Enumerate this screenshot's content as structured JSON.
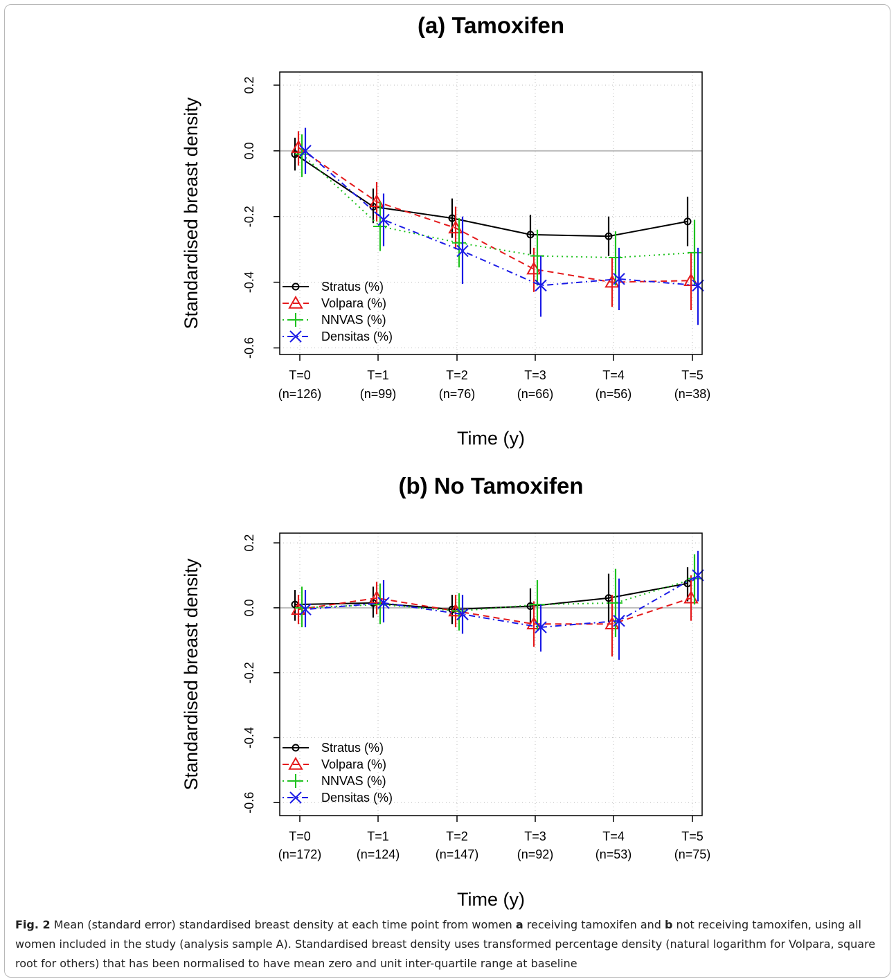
{
  "figure_label": "Fig. 2",
  "caption_parts": {
    "t1": " Mean (standard error) standardised breast density at each time point from women ",
    "a": "a",
    "t2": " receiving tamoxifen and ",
    "b": "b",
    "t3": " not receiving tamoxifen, using all women included in the study (analysis sample A). Standardised breast density uses transformed percentage density (natural logarithm for Volpara, square root for others) that has been normalised to have mean zero and unit inter-quartile range at baseline"
  },
  "colors": {
    "Stratus (%)": "#000000",
    "Volpara (%)": "#e41a1c",
    "NNVAS (%)": "#1fc21f",
    "Densitas (%)": "#1a1ae6",
    "refline": "#bdbdbd",
    "grid": "#bbbbbb"
  },
  "chart_data": [
    {
      "type": "line",
      "title": "(a) Tamoxifen",
      "xlabel": "Time (y)",
      "ylabel": "Standardised breast density",
      "ylim": [
        -0.62,
        0.24
      ],
      "yticks": [
        "0.2",
        "0.0",
        "-0.2",
        "-0.4",
        "-0.6"
      ],
      "categories": [
        "T=0",
        "T=1",
        "T=2",
        "T=3",
        "T=4",
        "T=5"
      ],
      "n_labels": [
        "(n=126)",
        "(n=99)",
        "(n=76)",
        "(n=66)",
        "(n=56)",
        "(n=38)"
      ],
      "grid": true,
      "reference_line": 0,
      "legend": {
        "position": "bottom-left",
        "entries": [
          "Stratus (%)",
          "Volpara (%)",
          "NNVAS (%)",
          "Densitas (%)"
        ]
      },
      "series": [
        {
          "name": "Stratus (%)",
          "marker": "circle",
          "dash": "solid",
          "values": [
            -0.01,
            -0.17,
            -0.205,
            -0.255,
            -0.26,
            -0.215
          ],
          "lower": [
            -0.06,
            -0.22,
            -0.265,
            -0.315,
            -0.32,
            -0.29
          ],
          "upper": [
            0.04,
            -0.115,
            -0.145,
            -0.195,
            -0.2,
            -0.14
          ]
        },
        {
          "name": "Volpara (%)",
          "marker": "triangle",
          "dash": "dashed",
          "values": [
            0.01,
            -0.155,
            -0.235,
            -0.36,
            -0.4,
            -0.395
          ],
          "lower": [
            -0.045,
            -0.215,
            -0.3,
            -0.43,
            -0.475,
            -0.485
          ],
          "upper": [
            0.06,
            -0.095,
            -0.17,
            -0.295,
            -0.325,
            -0.31
          ]
        },
        {
          "name": "NNVAS (%)",
          "marker": "plus",
          "dash": "dotted",
          "values": [
            -0.01,
            -0.23,
            -0.28,
            -0.32,
            -0.325,
            -0.31
          ],
          "lower": [
            -0.08,
            -0.305,
            -0.355,
            -0.41,
            -0.41,
            -0.41
          ],
          "upper": [
            0.05,
            -0.155,
            -0.205,
            -0.24,
            -0.245,
            -0.21
          ]
        },
        {
          "name": "Densitas (%)",
          "marker": "x",
          "dash": "dotdash",
          "values": [
            0.0,
            -0.21,
            -0.305,
            -0.41,
            -0.39,
            -0.41
          ],
          "lower": [
            -0.07,
            -0.29,
            -0.405,
            -0.505,
            -0.485,
            -0.53
          ],
          "upper": [
            0.07,
            -0.13,
            -0.2,
            -0.32,
            -0.295,
            -0.295
          ]
        }
      ]
    },
    {
      "type": "line",
      "title": "(b) No Tamoxifen",
      "xlabel": "Time (y)",
      "ylabel": "Standardised breast density",
      "ylim": [
        -0.64,
        0.23
      ],
      "yticks": [
        "0.2",
        "0.0",
        "-0.2",
        "-0.4",
        "-0.6"
      ],
      "categories": [
        "T=0",
        "T=1",
        "T=2",
        "T=3",
        "T=4",
        "T=5"
      ],
      "n_labels": [
        "(n=172)",
        "(n=124)",
        "(n=147)",
        "(n=92)",
        "(n=53)",
        "(n=75)"
      ],
      "grid": true,
      "reference_line": 0,
      "legend": {
        "position": "bottom-left",
        "entries": [
          "Stratus (%)",
          "Volpara (%)",
          "NNVAS (%)",
          "Densitas (%)"
        ]
      },
      "series": [
        {
          "name": "Stratus (%)",
          "marker": "circle",
          "dash": "solid",
          "values": [
            0.01,
            0.015,
            -0.005,
            0.005,
            0.03,
            0.075
          ],
          "lower": [
            -0.04,
            -0.03,
            -0.05,
            -0.05,
            -0.045,
            0.02
          ],
          "upper": [
            0.055,
            0.065,
            0.04,
            0.06,
            0.105,
            0.125
          ]
        },
        {
          "name": "Volpara (%)",
          "marker": "triangle",
          "dash": "dashed",
          "values": [
            -0.005,
            0.03,
            -0.01,
            -0.05,
            -0.05,
            0.03
          ],
          "lower": [
            -0.05,
            -0.02,
            -0.06,
            -0.12,
            -0.15,
            -0.04
          ],
          "upper": [
            0.04,
            0.08,
            0.04,
            0.02,
            0.04,
            0.1
          ]
        },
        {
          "name": "NNVAS (%)",
          "marker": "plus",
          "dash": "dotted",
          "values": [
            0.0,
            0.01,
            -0.01,
            0.01,
            0.015,
            0.09
          ],
          "lower": [
            -0.06,
            -0.05,
            -0.07,
            -0.07,
            -0.09,
            0.01
          ],
          "upper": [
            0.065,
            0.075,
            0.045,
            0.085,
            0.12,
            0.165
          ]
        },
        {
          "name": "Densitas (%)",
          "marker": "x",
          "dash": "dotdash",
          "values": [
            -0.005,
            0.015,
            -0.02,
            -0.06,
            -0.04,
            0.1
          ],
          "lower": [
            -0.06,
            -0.045,
            -0.08,
            -0.135,
            -0.16,
            0.02
          ],
          "upper": [
            0.055,
            0.085,
            0.04,
            0.01,
            0.09,
            0.175
          ]
        }
      ]
    }
  ]
}
